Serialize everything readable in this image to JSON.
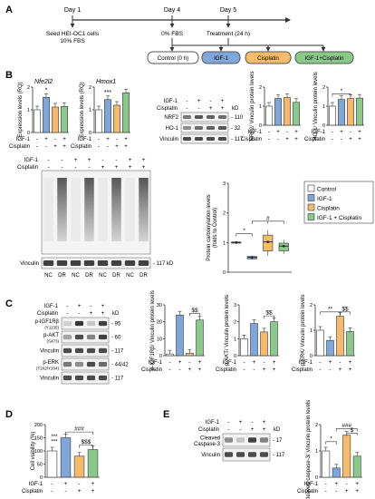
{
  "colors": {
    "control": "#ffffff",
    "igf1": "#7ea6d9",
    "cisplatin": "#f5bb6b",
    "combo": "#8bc98b",
    "edge": "#333333"
  },
  "panels": {
    "A": "A",
    "B": "B",
    "C": "C",
    "D": "D",
    "E": "E"
  },
  "timeline": {
    "day1": "Day 1",
    "day4": "Day 4",
    "day5": "Day 5",
    "seed_line1": "Seed HEI-OC1 cells",
    "seed_line2": "10% FBS",
    "fbs0": "0% FBS",
    "treatment": "Treatment (24 h)",
    "groups": [
      "Control (0 h)",
      "IGF-1",
      "Cisplatin",
      "IGF-1+Cisplatin"
    ]
  },
  "treat_labels": {
    "igf": "IGF-1",
    "cis": "Cisplatin",
    "kd": "kD"
  },
  "b_expr": [
    {
      "gene": "Nfe2l2",
      "ylabel": "Expression levels (RQ)",
      "ticks": [
        "0",
        "1",
        "2"
      ],
      "ymax": 2,
      "values": [
        1.0,
        1.55,
        1.12,
        1.15
      ],
      "sig": "*"
    },
    {
      "gene": "Hmox1",
      "ylabel": "Expression levels (RQ)",
      "ticks": [
        "0",
        "1",
        "2"
      ],
      "ymax": 2,
      "values": [
        1.0,
        1.45,
        1.2,
        1.75
      ],
      "sig": "***"
    }
  ],
  "b_blot": {
    "igf": [
      "-",
      "+",
      "-",
      "+"
    ],
    "cis": [
      "-",
      "-",
      "+",
      "+"
    ],
    "rows": [
      {
        "name": "NRF2",
        "kd": "110"
      },
      {
        "name": "HO-1",
        "kd": "32"
      },
      {
        "name": "Vinculin",
        "kd": "117"
      }
    ]
  },
  "b_quant": [
    {
      "ylabel": "NRF2/ Vinculin protein levels",
      "ticks": [
        "0",
        "1",
        "2"
      ],
      "ymax": 2,
      "values": [
        1.0,
        1.4,
        1.45,
        1.2
      ],
      "sig": ""
    },
    {
      "ylabel": "HO-1/ Vinculin protein levels",
      "ticks": [
        "0",
        "1",
        "2"
      ],
      "ymax": 2,
      "values": [
        1.0,
        1.35,
        1.4,
        1.42
      ],
      "sig": "*"
    }
  ],
  "carb_blot": {
    "igf": [
      "-",
      "-",
      "+",
      "+",
      "-",
      "-",
      "+",
      "+"
    ],
    "cis": [
      "-",
      "-",
      "-",
      "-",
      "+",
      "+",
      "+",
      "+"
    ],
    "lanes": [
      "NC",
      "DR",
      "NC",
      "DR",
      "NC",
      "DR",
      "NC",
      "DR"
    ],
    "vinculin": "Vinculin",
    "kd": "117 kD"
  },
  "boxplot": {
    "ylabel": "Protein carbonylation levels (folds to Control)",
    "ticks": [
      "0",
      "1",
      "2",
      "3"
    ],
    "ymax": 3,
    "boxes": [
      {
        "median": 1.0,
        "q1": 0.98,
        "q3": 1.02,
        "min": 0.97,
        "max": 1.03
      },
      {
        "median": 0.5,
        "q1": 0.45,
        "q3": 0.53,
        "min": 0.42,
        "max": 0.56
      },
      {
        "median": 1.02,
        "q1": 0.72,
        "q3": 1.25,
        "min": 0.55,
        "max": 1.42
      },
      {
        "median": 0.88,
        "q1": 0.72,
        "q3": 0.98,
        "min": 0.62,
        "max": 1.1
      }
    ],
    "sig1": "*",
    "sig2": "#"
  },
  "legend": [
    "Control",
    "IGF-1",
    "Cisplatin",
    "IGF-1 + Cisplatin"
  ],
  "c_blot": {
    "igf": [
      "-",
      "+",
      "-",
      "+"
    ],
    "cis": [
      "-",
      "-",
      "+",
      "+"
    ],
    "rows": [
      {
        "name": "p-IGF1Rβ",
        "sub": "(Y1135)",
        "kd": "95"
      },
      {
        "name": "p-AKT",
        "sub": "(S473)",
        "kd": "60"
      },
      {
        "name": "Vinculin",
        "sub": "",
        "kd": "117"
      },
      {
        "name": "p-ERK",
        "sub": "(T202/Y204)",
        "kd": "44/42"
      },
      {
        "name": "Vinculin",
        "sub": "",
        "kd": "117"
      }
    ]
  },
  "c_quant": [
    {
      "ylabel": "p-IGF1Rβ/ Vinculin protein levels",
      "ticks": [
        "0",
        "10",
        "20",
        "30"
      ],
      "ymax": 30,
      "values": [
        1.0,
        24.0,
        1.5,
        21.0
      ],
      "sig": "$$"
    },
    {
      "ylabel": "p-AKT/ Vinculin protein levels",
      "ticks": [
        "0",
        "1",
        "2",
        "3"
      ],
      "ymax": 3,
      "values": [
        1.0,
        1.9,
        1.4,
        2.0
      ],
      "sig": "$$"
    },
    {
      "ylabel": "p-ERK/ Vinculin protein levels",
      "ticks": [
        "0",
        "1",
        "2"
      ],
      "ymax": 2,
      "values": [
        1.0,
        0.6,
        1.55,
        0.95
      ],
      "sig1": "**",
      "sig2": "$$"
    }
  ],
  "d_chart": {
    "ylabel": "Cell viability (%)",
    "ticks": [
      "0",
      "50",
      "100",
      "150",
      "200"
    ],
    "ymax": 200,
    "values": [
      100,
      150,
      80,
      105
    ],
    "sig_a": "***",
    "sig_b": "***",
    "sig_c": "###",
    "sig_d": "$$$"
  },
  "e_blot": {
    "igf": [
      "-",
      "+",
      "-",
      "+"
    ],
    "cis": [
      "-",
      "-",
      "+",
      "+"
    ],
    "rows": [
      {
        "name": "Cleaved",
        "name2": "Caspase-3",
        "kd": "17"
      },
      {
        "name": "Vinculin",
        "name2": "",
        "kd": "117"
      }
    ]
  },
  "e_quant": {
    "ylabel": "Cleaved caspase-3/ Vinculin protein levels",
    "ticks": [
      "0",
      "1",
      "2"
    ],
    "ymax": 2,
    "values": [
      1.0,
      0.35,
      1.6,
      0.8
    ],
    "sig1": "*",
    "sig2": "###",
    "sig3": "$"
  }
}
